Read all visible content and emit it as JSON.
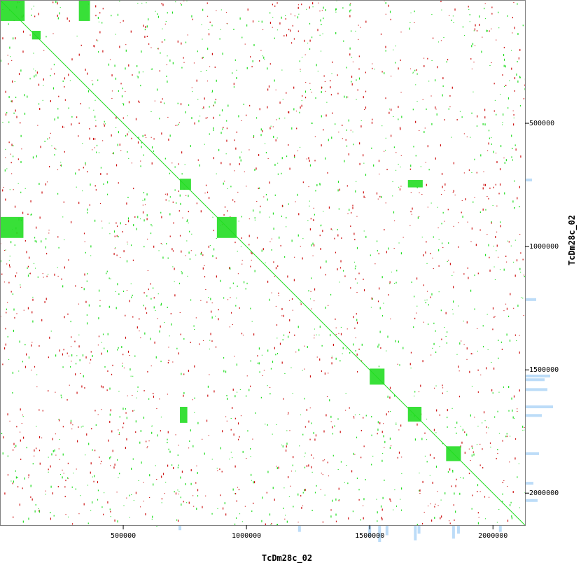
{
  "chart_data": {
    "type": "scatter",
    "subtype": "dot-plot (self-alignment)",
    "title": "",
    "xlabel": "TcDm28c_02",
    "ylabel": "TcDm28c_02",
    "xlim": [
      0,
      2130000
    ],
    "ylim": [
      0,
      2130000
    ],
    "y_axis_side": "right",
    "y_axis_inverted": true,
    "x_ticks": [
      500000,
      1000000,
      1500000,
      2000000
    ],
    "x_tick_labels": [
      "500000",
      "1000000",
      "1500000",
      "2000000"
    ],
    "y_ticks": [
      500000,
      1000000,
      1500000,
      2000000
    ],
    "y_tick_labels": [
      "500000",
      "1000000",
      "1500000",
      "2000000"
    ],
    "grid": false,
    "legend": "none",
    "colors": {
      "forward_match": "#22dd22",
      "reverse_match": "#cc1111",
      "coverage": "#bcdcf8",
      "frame": "#808080",
      "background": "#ffffff"
    },
    "series": [
      {
        "kind": "forward",
        "color": "#22dd22"
      },
      {
        "kind": "reverse",
        "color": "#cc1111"
      }
    ],
    "diagonal": {
      "start": [
        0,
        0
      ],
      "end": [
        2130000,
        2130000
      ]
    },
    "repeat_blocks": [
      {
        "x": [
          0,
          100000
        ],
        "y": [
          0,
          85000
        ]
      },
      {
        "x": [
          130000,
          165000
        ],
        "y": [
          125000,
          160000
        ]
      },
      {
        "x": [
          730000,
          775000
        ],
        "y": [
          725000,
          770000
        ]
      },
      {
        "x": [
          1500000,
          1560000
        ],
        "y": [
          1495000,
          1560000
        ]
      },
      {
        "x": [
          1655000,
          1710000
        ],
        "y": [
          1650000,
          1710000
        ]
      },
      {
        "x": [
          1810000,
          1870000
        ],
        "y": [
          1810000,
          1870000
        ]
      },
      {
        "x": [
          1655000,
          1715000
        ],
        "y": [
          730000,
          760000
        ]
      },
      {
        "x": [
          730000,
          760000
        ],
        "y": [
          1650000,
          1715000
        ]
      },
      {
        "x": [
          320000,
          365000
        ],
        "y": [
          0,
          85000
        ]
      },
      {
        "x": [
          0,
          95000
        ],
        "y": [
          880000,
          965000
        ]
      },
      {
        "x": [
          880000,
          960000
        ],
        "y": [
          880000,
          965000
        ]
      }
    ],
    "empty_gaps": {
      "x": [
        [
          1485000,
          1500000
        ],
        [
          1635000,
          1660000
        ]
      ],
      "y": [
        [
          705000,
          730000
        ],
        [
          1525000,
          1560000
        ],
        [
          1620000,
          1650000
        ]
      ]
    },
    "coverage_histogram_bottom": [
      {
        "x": 730000,
        "height": 0.3
      },
      {
        "x": 1215000,
        "height": 0.4
      },
      {
        "x": 1500000,
        "height": 0.7
      },
      {
        "x": 1540000,
        "height": 1.0
      },
      {
        "x": 1570000,
        "height": 0.6
      },
      {
        "x": 1685000,
        "height": 0.9
      },
      {
        "x": 1700000,
        "height": 0.5
      },
      {
        "x": 1840000,
        "height": 0.8
      },
      {
        "x": 1860000,
        "height": 0.5
      },
      {
        "x": 2030000,
        "height": 0.4
      }
    ],
    "coverage_histogram_right": [
      {
        "y": 730000,
        "height": 0.25
      },
      {
        "y": 1215000,
        "height": 0.4
      },
      {
        "y": 1525000,
        "height": 0.9
      },
      {
        "y": 1540000,
        "height": 0.7
      },
      {
        "y": 1580000,
        "height": 0.8
      },
      {
        "y": 1650000,
        "height": 1.0
      },
      {
        "y": 1685000,
        "height": 0.6
      },
      {
        "y": 1840000,
        "height": 0.5
      },
      {
        "y": 1960000,
        "height": 0.3
      },
      {
        "y": 2030000,
        "height": 0.45
      }
    ]
  }
}
